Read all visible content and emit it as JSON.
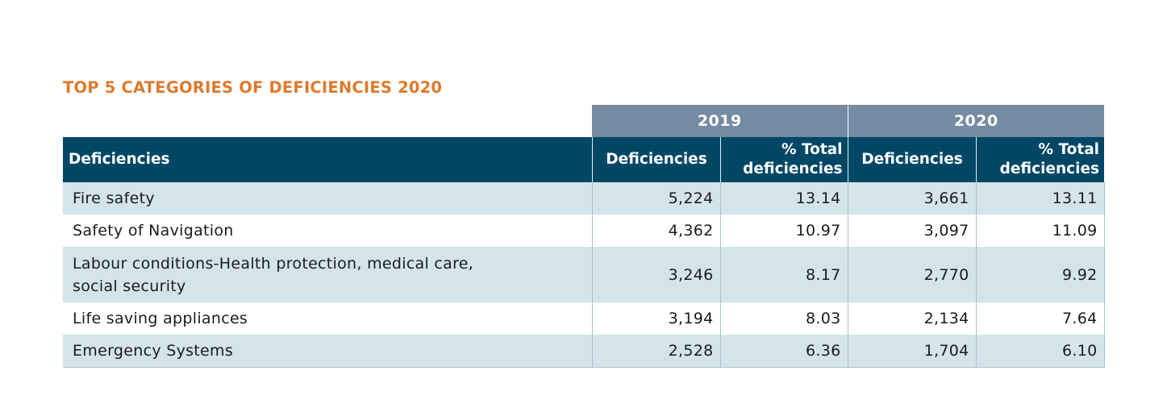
{
  "title": "TOP 5 CATEGORIES OF DEFICIENCIES 2020",
  "years": [
    "2019",
    "2020"
  ],
  "headers": {
    "category": "Deficiencies",
    "deficiencies": "Deficiencies",
    "pct_line1": "% Total",
    "pct_line2": "deficiencies"
  },
  "rows": [
    {
      "category": "Fire safety",
      "def_2019": "5,224",
      "pct_2019": "13.14",
      "def_2020": "3,661",
      "pct_2020": "13.11"
    },
    {
      "category": "Safety of Navigation",
      "def_2019": "4,362",
      "pct_2019": "10.97",
      "def_2020": "3,097",
      "pct_2020": "11.09"
    },
    {
      "category_line1": "Labour conditions-Health protection, medical care,",
      "category_line2": "social security",
      "def_2019": "3,246",
      "pct_2019": "8.17",
      "def_2020": "2,770",
      "pct_2020": "9.92"
    },
    {
      "category": "Life saving appliances",
      "def_2019": "3,194",
      "pct_2019": "8.03",
      "def_2020": "2,134",
      "pct_2020": "7.64"
    },
    {
      "category": "Emergency Systems",
      "def_2019": "2,528",
      "pct_2019": "6.36",
      "def_2020": "1,704",
      "pct_2020": "6.10"
    }
  ],
  "colors": {
    "title": "#dd7a2c",
    "year_header": "#758ba4",
    "column_header": "#004766",
    "row_shade": "#d4e4ea"
  }
}
